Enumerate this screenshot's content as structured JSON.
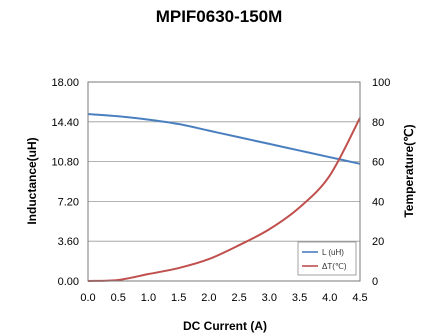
{
  "chart_data": {
    "type": "line",
    "title": "MPIF0630-150M",
    "xlabel": "DC Current (A)",
    "ylabel": "Inductance(uH)",
    "y2label": "Temperature(℃)",
    "xlim": [
      0.0,
      4.5
    ],
    "ylim": [
      0.0,
      18.0
    ],
    "y2lim": [
      0,
      100
    ],
    "x_ticks": [
      "0.0",
      "0.5",
      "1.0",
      "1.5",
      "2.0",
      "2.5",
      "3.0",
      "3.5",
      "4.0",
      "4.5"
    ],
    "y_ticks": [
      "0.00",
      "3.60",
      "7.20",
      "10.80",
      "14.40",
      "18.00"
    ],
    "y2_ticks": [
      "0",
      "20",
      "40",
      "60",
      "80",
      "100"
    ],
    "grid": "horizontal",
    "legend": "bottom-right",
    "series": [
      {
        "name": "L (uH)",
        "axis": "left",
        "color": "#4a7fbf",
        "x": [
          0.0,
          0.5,
          1.0,
          1.5,
          2.0,
          2.5,
          3.0,
          3.5,
          4.0,
          4.5
        ],
        "y": [
          15.1,
          14.9,
          14.6,
          14.2,
          13.6,
          13.0,
          12.4,
          11.8,
          11.2,
          10.6
        ]
      },
      {
        "name": "ΔT(℃)",
        "axis": "right",
        "color": "#c0504d",
        "x": [
          0.0,
          0.5,
          1.0,
          1.5,
          2.0,
          2.5,
          3.0,
          3.5,
          4.0,
          4.5
        ],
        "y": [
          0,
          0.5,
          3.5,
          6.5,
          11,
          18,
          26,
          37,
          53,
          82
        ]
      }
    ]
  }
}
